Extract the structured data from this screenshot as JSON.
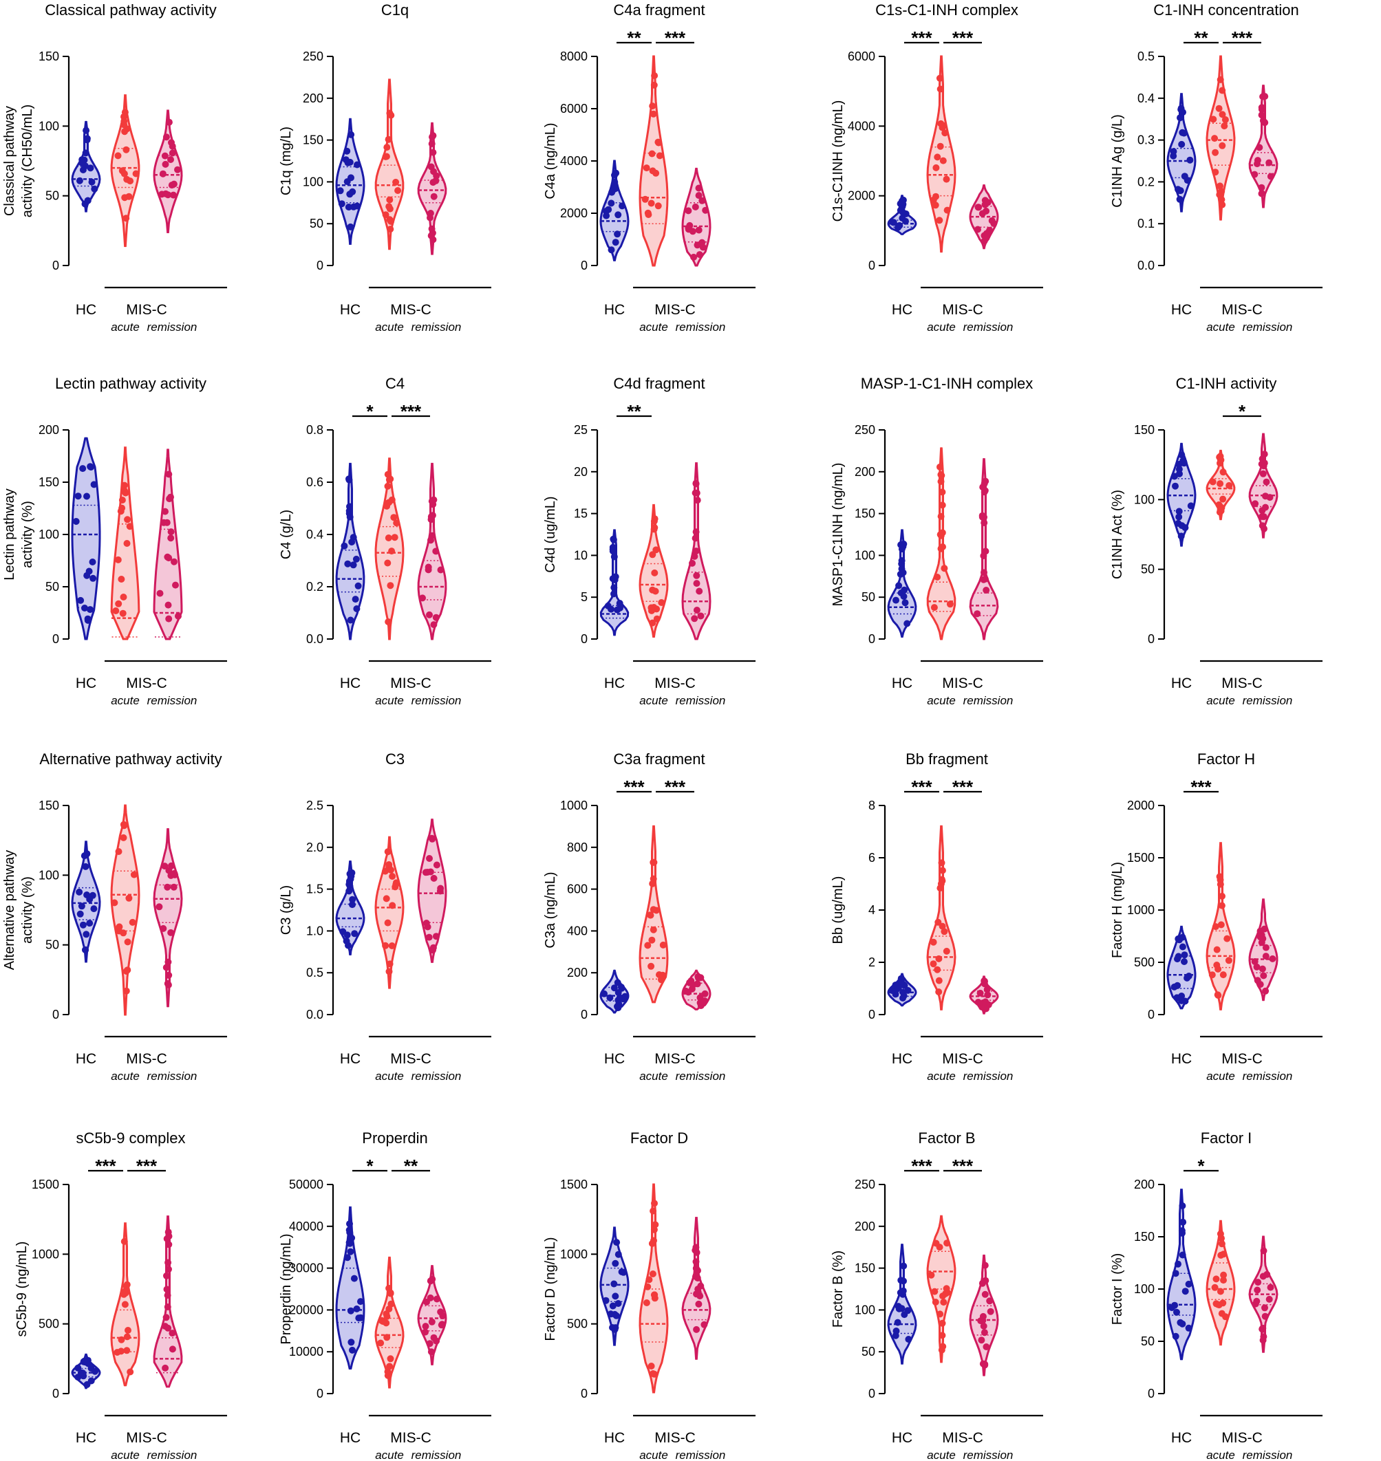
{
  "figure": {
    "group_labels": {
      "hc": "HC",
      "misc": "MIS-C",
      "acute": "acute",
      "remission": "remission"
    },
    "colors": {
      "hc": "#1a1aa8",
      "acute": "#f23b3b",
      "remission": "#d01a5e",
      "hc_fill": "#c9c9f0",
      "acute_fill": "#fbd0d0",
      "remission_fill": "#f4c6d8"
    }
  },
  "chart_data": [
    {
      "type": "violin",
      "title": "Classical pathway activity",
      "ylabel": [
        "Classical pathway",
        "activity (CH50/mL)"
      ],
      "yticks": [
        0,
        50,
        100,
        150
      ],
      "ylim": [
        0,
        150
      ],
      "groups": [
        {
          "name": "HC",
          "median": 62,
          "q1": 57,
          "q3": 71,
          "min": 39,
          "max": 103
        },
        {
          "name": "acute",
          "median": 70,
          "q1": 56,
          "q3": 84,
          "min": 14,
          "max": 122
        },
        {
          "name": "remission",
          "median": 65,
          "q1": 56,
          "q3": 79,
          "min": 24,
          "max": 111
        }
      ],
      "sig": []
    },
    {
      "type": "violin",
      "title": "C1q",
      "ylabel": [
        "C1q (mg/L)"
      ],
      "yticks": [
        0,
        50,
        100,
        150,
        200,
        250
      ],
      "ylim": [
        0,
        250
      ],
      "groups": [
        {
          "name": "HC",
          "median": 96,
          "q1": 75,
          "q3": 118,
          "min": 26,
          "max": 175
        },
        {
          "name": "acute",
          "median": 96,
          "q1": 82,
          "q3": 120,
          "min": 20,
          "max": 222
        },
        {
          "name": "remission",
          "median": 90,
          "q1": 75,
          "q3": 102,
          "min": 14,
          "max": 170
        }
      ],
      "sig": []
    },
    {
      "type": "violin",
      "title": "C4a fragment",
      "ylabel": [
        "C4a (ng/mL)"
      ],
      "yticks": [
        0,
        2000,
        4000,
        6000,
        8000
      ],
      "ylim": [
        0,
        8000
      ],
      "groups": [
        {
          "name": "HC",
          "median": 1700,
          "q1": 1300,
          "q3": 2400,
          "min": 200,
          "max": 4000
        },
        {
          "name": "acute",
          "median": 2600,
          "q1": 1600,
          "q3": 4300,
          "min": 0,
          "max": 8000
        },
        {
          "name": "remission",
          "median": 1500,
          "q1": 900,
          "q3": 2400,
          "min": 0,
          "max": 3700
        }
      ],
      "sig": [
        {
          "from": 0,
          "to": 1,
          "label": "**"
        },
        {
          "from": 1,
          "to": 2,
          "label": "***"
        }
      ]
    },
    {
      "type": "violin",
      "title": "C1s-C1-INH complex",
      "ylabel": [
        "C1s-C1INH (ng/mL)"
      ],
      "yticks": [
        0,
        2000,
        4000,
        6000
      ],
      "ylim": [
        0,
        6000
      ],
      "groups": [
        {
          "name": "HC",
          "median": 1200,
          "q1": 1100,
          "q3": 1300,
          "min": 900,
          "max": 2000
        },
        {
          "name": "acute",
          "median": 2600,
          "q1": 2000,
          "q3": 3400,
          "min": 400,
          "max": 6000
        },
        {
          "name": "remission",
          "median": 1400,
          "q1": 1100,
          "q3": 1700,
          "min": 500,
          "max": 2300
        }
      ],
      "sig": [
        {
          "from": 0,
          "to": 1,
          "label": "***"
        },
        {
          "from": 1,
          "to": 2,
          "label": "***"
        }
      ]
    },
    {
      "type": "violin",
      "title": "C1-INH concentration",
      "ylabel": [
        "C1INH Ag (g/L)"
      ],
      "yticks": [
        0.0,
        0.1,
        0.2,
        0.3,
        0.4,
        0.5
      ],
      "ylim": [
        0,
        0.5
      ],
      "groups": [
        {
          "name": "HC",
          "median": 0.25,
          "q1": 0.21,
          "q3": 0.28,
          "min": 0.13,
          "max": 0.41
        },
        {
          "name": "acute",
          "median": 0.3,
          "q1": 0.24,
          "q3": 0.34,
          "min": 0.11,
          "max": 0.5
        },
        {
          "name": "remission",
          "median": 0.24,
          "q1": 0.22,
          "q3": 0.27,
          "min": 0.14,
          "max": 0.43
        }
      ],
      "sig": [
        {
          "from": 0,
          "to": 1,
          "label": "**"
        },
        {
          "from": 1,
          "to": 2,
          "label": "***"
        }
      ]
    },
    {
      "type": "violin",
      "title": "Lectin pathway activity",
      "ylabel": [
        "Lectin pathway",
        "activity (%)"
      ],
      "yticks": [
        0,
        50,
        100,
        150,
        200
      ],
      "ylim": [
        0,
        200
      ],
      "groups": [
        {
          "name": "HC",
          "median": 100,
          "q1": 30,
          "q3": 128,
          "min": 0,
          "max": 192
        },
        {
          "name": "acute",
          "median": 20,
          "q1": 2,
          "q3": 110,
          "min": 0,
          "max": 183
        },
        {
          "name": "remission",
          "median": 25,
          "q1": 2,
          "q3": 105,
          "min": 0,
          "max": 181
        }
      ],
      "sig": []
    },
    {
      "type": "violin",
      "title": "C4",
      "ylabel": [
        "C4 (g/L)"
      ],
      "yticks": [
        0.0,
        0.2,
        0.4,
        0.6,
        0.8
      ],
      "ylim": [
        0,
        0.8
      ],
      "groups": [
        {
          "name": "HC",
          "median": 0.23,
          "q1": 0.18,
          "q3": 0.34,
          "min": 0.0,
          "max": 0.67
        },
        {
          "name": "acute",
          "median": 0.33,
          "q1": 0.24,
          "q3": 0.43,
          "min": 0.0,
          "max": 0.69
        },
        {
          "name": "remission",
          "median": 0.2,
          "q1": 0.15,
          "q3": 0.3,
          "min": 0.0,
          "max": 0.67
        }
      ],
      "sig": [
        {
          "from": 0,
          "to": 1,
          "label": "*"
        },
        {
          "from": 1,
          "to": 2,
          "label": "***"
        }
      ]
    },
    {
      "type": "violin",
      "title": "C4d fragment",
      "ylabel": [
        "C4d (ug/mL)"
      ],
      "yticks": [
        0,
        5,
        10,
        15,
        20,
        25
      ],
      "ylim": [
        0,
        25
      ],
      "groups": [
        {
          "name": "HC",
          "median": 3,
          "q1": 2.5,
          "q3": 4,
          "min": 0.5,
          "max": 13
        },
        {
          "name": "acute",
          "median": 6.5,
          "q1": 4.5,
          "q3": 9,
          "min": 0.3,
          "max": 16
        },
        {
          "name": "remission",
          "median": 4.5,
          "q1": 3,
          "q3": 8,
          "min": 0,
          "max": 21
        }
      ],
      "sig": [
        {
          "from": 0,
          "to": 1,
          "label": "**"
        }
      ]
    },
    {
      "type": "violin",
      "title": "MASP-1-C1-INH complex",
      "ylabel": [
        "MASP1-C1INH (ng/mL)"
      ],
      "yticks": [
        0,
        50,
        100,
        150,
        200,
        250
      ],
      "ylim": [
        0,
        250
      ],
      "groups": [
        {
          "name": "HC",
          "median": 38,
          "q1": 30,
          "q3": 55,
          "min": 3,
          "max": 130
        },
        {
          "name": "acute",
          "median": 45,
          "q1": 33,
          "q3": 68,
          "min": 0,
          "max": 228
        },
        {
          "name": "remission",
          "median": 40,
          "q1": 28,
          "q3": 55,
          "min": 0,
          "max": 215
        }
      ],
      "sig": []
    },
    {
      "type": "violin",
      "title": "C1-INH activity",
      "ylabel": [
        "C1INH Act (%)"
      ],
      "yticks": [
        0,
        50,
        100,
        150
      ],
      "ylim": [
        0,
        150
      ],
      "groups": [
        {
          "name": "HC",
          "median": 103,
          "q1": 92,
          "q3": 115,
          "min": 67,
          "max": 140
        },
        {
          "name": "acute",
          "median": 108,
          "q1": 104,
          "q3": 115,
          "min": 86,
          "max": 135
        },
        {
          "name": "remission",
          "median": 103,
          "q1": 95,
          "q3": 110,
          "min": 73,
          "max": 147
        }
      ],
      "sig": [
        {
          "from": 1,
          "to": 2,
          "label": "*"
        }
      ]
    },
    {
      "type": "violin",
      "title": "Alternative pathway activity",
      "ylabel": [
        "Alternative pathway",
        "activity (%)"
      ],
      "yticks": [
        0,
        50,
        100,
        150
      ],
      "ylim": [
        0,
        150
      ],
      "groups": [
        {
          "name": "HC",
          "median": 80,
          "q1": 68,
          "q3": 91,
          "min": 38,
          "max": 124
        },
        {
          "name": "acute",
          "median": 86,
          "q1": 60,
          "q3": 103,
          "min": 0,
          "max": 150
        },
        {
          "name": "remission",
          "median": 83,
          "q1": 66,
          "q3": 93,
          "min": 6,
          "max": 133
        }
      ],
      "sig": []
    },
    {
      "type": "violin",
      "title": "C3",
      "ylabel": [
        "C3 (g/L)"
      ],
      "yticks": [
        0.0,
        0.5,
        1.0,
        1.5,
        2.0,
        2.5
      ],
      "ylim": [
        0,
        2.5
      ],
      "groups": [
        {
          "name": "HC",
          "median": 1.15,
          "q1": 1.05,
          "q3": 1.32,
          "min": 0.72,
          "max": 1.83
        },
        {
          "name": "acute",
          "median": 1.28,
          "q1": 1.0,
          "q3": 1.5,
          "min": 0.32,
          "max": 2.12
        },
        {
          "name": "remission",
          "median": 1.45,
          "q1": 1.1,
          "q3": 1.7,
          "min": 0.63,
          "max": 2.33
        }
      ],
      "sig": []
    },
    {
      "type": "violin",
      "title": "C3a fragment",
      "ylabel": [
        "C3a (ng/mL)"
      ],
      "yticks": [
        0,
        200,
        400,
        600,
        800,
        1000
      ],
      "ylim": [
        0,
        1000
      ],
      "groups": [
        {
          "name": "HC",
          "median": 90,
          "q1": 65,
          "q3": 130,
          "min": 10,
          "max": 210
        },
        {
          "name": "acute",
          "median": 270,
          "q1": 170,
          "q3": 420,
          "min": 60,
          "max": 900
        },
        {
          "name": "remission",
          "median": 100,
          "q1": 70,
          "q3": 150,
          "min": 25,
          "max": 210
        }
      ],
      "sig": [
        {
          "from": 0,
          "to": 1,
          "label": "***"
        },
        {
          "from": 1,
          "to": 2,
          "label": "***"
        }
      ]
    },
    {
      "type": "violin",
      "title": "Bb fragment",
      "ylabel": [
        "Bb (ug/mL)"
      ],
      "yticks": [
        0,
        2,
        4,
        6,
        8
      ],
      "ylim": [
        0,
        8
      ],
      "groups": [
        {
          "name": "HC",
          "median": 0.85,
          "q1": 0.7,
          "q3": 1.1,
          "min": 0.35,
          "max": 1.55
        },
        {
          "name": "acute",
          "median": 2.2,
          "q1": 1.7,
          "q3": 3.0,
          "min": 0.2,
          "max": 7.2
        },
        {
          "name": "remission",
          "median": 0.7,
          "q1": 0.55,
          "q3": 0.9,
          "min": 0.05,
          "max": 1.45
        }
      ],
      "sig": [
        {
          "from": 0,
          "to": 1,
          "label": "***"
        },
        {
          "from": 1,
          "to": 2,
          "label": "***"
        }
      ]
    },
    {
      "type": "violin",
      "title": "Factor H",
      "ylabel": [
        "Factor H (mg/L)"
      ],
      "yticks": [
        0,
        500,
        1000,
        1500,
        2000
      ],
      "ylim": [
        0,
        2000
      ],
      "groups": [
        {
          "name": "HC",
          "median": 380,
          "q1": 250,
          "q3": 560,
          "min": 60,
          "max": 840
        },
        {
          "name": "acute",
          "median": 560,
          "q1": 450,
          "q3": 800,
          "min": 50,
          "max": 1640
        },
        {
          "name": "remission",
          "median": 530,
          "q1": 400,
          "q3": 660,
          "min": 140,
          "max": 1100
        }
      ],
      "sig": [
        {
          "from": 0,
          "to": 1,
          "label": "***"
        }
      ]
    },
    {
      "type": "violin",
      "title": "sC5b-9 complex",
      "ylabel": [
        "sC5b-9 (ng/mL)"
      ],
      "yticks": [
        0,
        500,
        1000,
        1500
      ],
      "ylim": [
        0,
        1500
      ],
      "groups": [
        {
          "name": "HC",
          "median": 150,
          "q1": 120,
          "q3": 180,
          "min": 40,
          "max": 280
        },
        {
          "name": "acute",
          "median": 400,
          "q1": 300,
          "q3": 600,
          "min": 60,
          "max": 1220
        },
        {
          "name": "remission",
          "median": 250,
          "q1": 150,
          "q3": 400,
          "min": 50,
          "max": 1270
        }
      ],
      "sig": [
        {
          "from": 0,
          "to": 1,
          "label": "***"
        },
        {
          "from": 1,
          "to": 2,
          "label": "***"
        }
      ]
    },
    {
      "type": "violin",
      "title": "Properdin",
      "ylabel": [
        "Properdin (ng/mL)"
      ],
      "yticks": [
        0,
        10000,
        20000,
        30000,
        40000,
        50000
      ],
      "ylim": [
        0,
        50000
      ],
      "groups": [
        {
          "name": "HC",
          "median": 20000,
          "q1": 17000,
          "q3": 30000,
          "min": 6000,
          "max": 44500
        },
        {
          "name": "acute",
          "median": 14000,
          "q1": 11000,
          "q3": 18000,
          "min": 1500,
          "max": 32500
        },
        {
          "name": "remission",
          "median": 18000,
          "q1": 15000,
          "q3": 21000,
          "min": 7000,
          "max": 30500
        }
      ],
      "sig": [
        {
          "from": 0,
          "to": 1,
          "label": "*"
        },
        {
          "from": 1,
          "to": 2,
          "label": "**"
        }
      ]
    },
    {
      "type": "violin",
      "title": "Factor D",
      "ylabel": [
        "Factor D (ng/mL)"
      ],
      "yticks": [
        0,
        500,
        1000,
        1500
      ],
      "ylim": [
        0,
        1500
      ],
      "groups": [
        {
          "name": "HC",
          "median": 780,
          "q1": 660,
          "q3": 900,
          "min": 350,
          "max": 1190
        },
        {
          "name": "acute",
          "median": 500,
          "q1": 370,
          "q3": 750,
          "min": 10,
          "max": 1500
        },
        {
          "name": "remission",
          "median": 600,
          "q1": 530,
          "q3": 720,
          "min": 250,
          "max": 1260
        }
      ],
      "sig": []
    },
    {
      "type": "violin",
      "title": "Factor B",
      "ylabel": [
        "Factor B (%)"
      ],
      "yticks": [
        0,
        50,
        100,
        150,
        200,
        250
      ],
      "ylim": [
        0,
        250
      ],
      "groups": [
        {
          "name": "HC",
          "median": 83,
          "q1": 72,
          "q3": 100,
          "min": 36,
          "max": 178
        },
        {
          "name": "acute",
          "median": 146,
          "q1": 125,
          "q3": 170,
          "min": 38,
          "max": 212
        },
        {
          "name": "remission",
          "median": 88,
          "q1": 70,
          "q3": 105,
          "min": 22,
          "max": 165
        }
      ],
      "sig": [
        {
          "from": 0,
          "to": 1,
          "label": "***"
        },
        {
          "from": 1,
          "to": 2,
          "label": "***"
        }
      ]
    },
    {
      "type": "violin",
      "title": "Factor I",
      "ylabel": [
        "Factor I (%)"
      ],
      "yticks": [
        0,
        50,
        100,
        150,
        200
      ],
      "ylim": [
        0,
        200
      ],
      "groups": [
        {
          "name": "HC",
          "median": 85,
          "q1": 75,
          "q3": 115,
          "min": 33,
          "max": 195
        },
        {
          "name": "acute",
          "median": 100,
          "q1": 90,
          "q3": 125,
          "min": 47,
          "max": 165
        },
        {
          "name": "remission",
          "median": 95,
          "q1": 85,
          "q3": 105,
          "min": 40,
          "max": 150
        }
      ],
      "sig": [
        {
          "from": 0,
          "to": 1,
          "label": "*"
        }
      ]
    }
  ]
}
